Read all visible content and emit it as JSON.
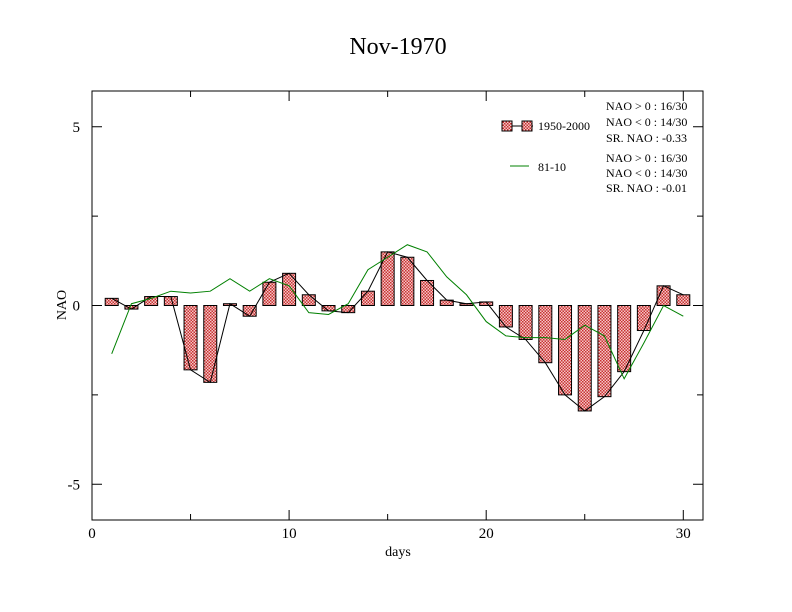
{
  "chart_data": {
    "type": "bar",
    "title": "Nov-1970",
    "xlabel": "days",
    "ylabel": "NAO",
    "xlim": [
      0,
      31
    ],
    "ylim": [
      -6,
      6
    ],
    "xticks": [
      0,
      10,
      20,
      30
    ],
    "xtick_labels": [
      "0",
      "10",
      "20",
      "30"
    ],
    "yticks": [
      -5,
      0,
      5
    ],
    "ytick_labels": [
      "-5",
      "0",
      "5"
    ],
    "grid": false,
    "legend_position": "top-right",
    "days": [
      1,
      2,
      3,
      4,
      5,
      6,
      7,
      8,
      9,
      10,
      11,
      12,
      13,
      14,
      15,
      16,
      17,
      18,
      19,
      20,
      21,
      22,
      23,
      24,
      25,
      26,
      27,
      28,
      29,
      30
    ],
    "series": [
      {
        "name": "1950-2000",
        "type": "bar",
        "color": "#d9534f",
        "values": [
          0.2,
          -0.1,
          0.25,
          0.25,
          -1.8,
          -2.15,
          0.05,
          -0.3,
          0.65,
          0.9,
          0.3,
          -0.15,
          -0.2,
          0.4,
          1.5,
          1.35,
          0.7,
          0.15,
          0.05,
          0.1,
          -0.6,
          -0.95,
          -1.6,
          -2.5,
          -2.95,
          -2.55,
          -1.85,
          -0.7,
          0.55,
          0.3
        ]
      },
      {
        "name": "81-10",
        "type": "line",
        "color": "#008000",
        "values": [
          -1.35,
          0.05,
          0.2,
          0.4,
          0.35,
          0.4,
          0.75,
          0.4,
          0.75,
          0.55,
          -0.2,
          -0.25,
          0.05,
          1.0,
          1.35,
          1.7,
          1.5,
          0.8,
          0.3,
          -0.45,
          -0.85,
          -0.9,
          -0.9,
          -0.95,
          -0.55,
          -0.85,
          -2.05,
          -1.05,
          0.0,
          -0.3
        ]
      }
    ],
    "stats": [
      {
        "line1": "NAO > 0 : 16/30",
        "line2": "NAO < 0 : 14/30",
        "line3": "SR. NAO : -0.33"
      },
      {
        "line1": "NAO > 0 : 16/30",
        "line2": "NAO < 0 : 14/30",
        "line3": "SR. NAO : -0.01"
      }
    ],
    "colors": {
      "bar_fill": "#e8a0a0",
      "bar_pattern": "#c83232",
      "bar_edge": "#000000",
      "bar_connector": "#000000",
      "line": "#008000"
    }
  }
}
